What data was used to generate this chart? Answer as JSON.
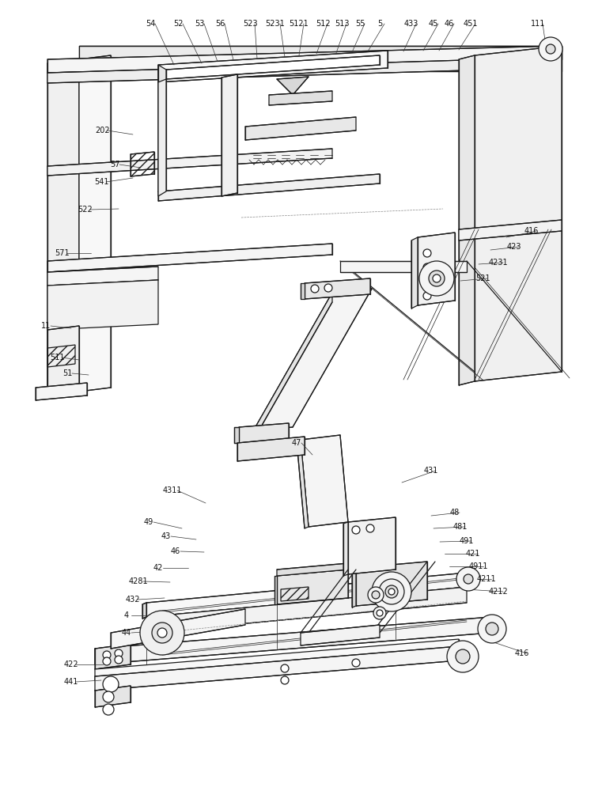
{
  "bg_color": "#ffffff",
  "line_color": "#1a1a1a",
  "figsize": [
    7.61,
    10.0
  ],
  "dpi": 100,
  "lw_main": 0.9,
  "lw_thin": 0.5,
  "lw_thick": 1.4
}
